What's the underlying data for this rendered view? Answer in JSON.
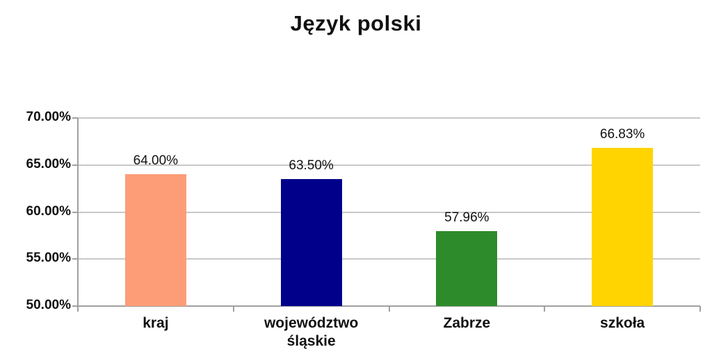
{
  "chart_data": {
    "type": "bar",
    "title": "Język polski",
    "categories": [
      "kraj",
      "województwo śląskie",
      "Zabrze",
      "szkoła"
    ],
    "values": [
      64.0,
      63.5,
      57.96,
      66.83
    ],
    "value_labels": [
      "64.00%",
      "63.50%",
      "57.96%",
      "66.83%"
    ],
    "bar_colors": [
      "#FC9D77",
      "#00008B",
      "#2E8B2C",
      "#FFD400"
    ],
    "xlabel": "",
    "ylabel": "",
    "ylim": [
      50,
      70
    ],
    "ytick_step": 5,
    "ytick_labels": [
      "50.00%",
      "55.00%",
      "60.00%",
      "65.00%",
      "70.00%"
    ],
    "grid": "horizontal-only",
    "legend": "none",
    "colors": {
      "grid_color": "#C8C8C8",
      "axis_color": "#A0A0A0",
      "text_color": "#111111",
      "background": "#FFFFFF"
    }
  }
}
